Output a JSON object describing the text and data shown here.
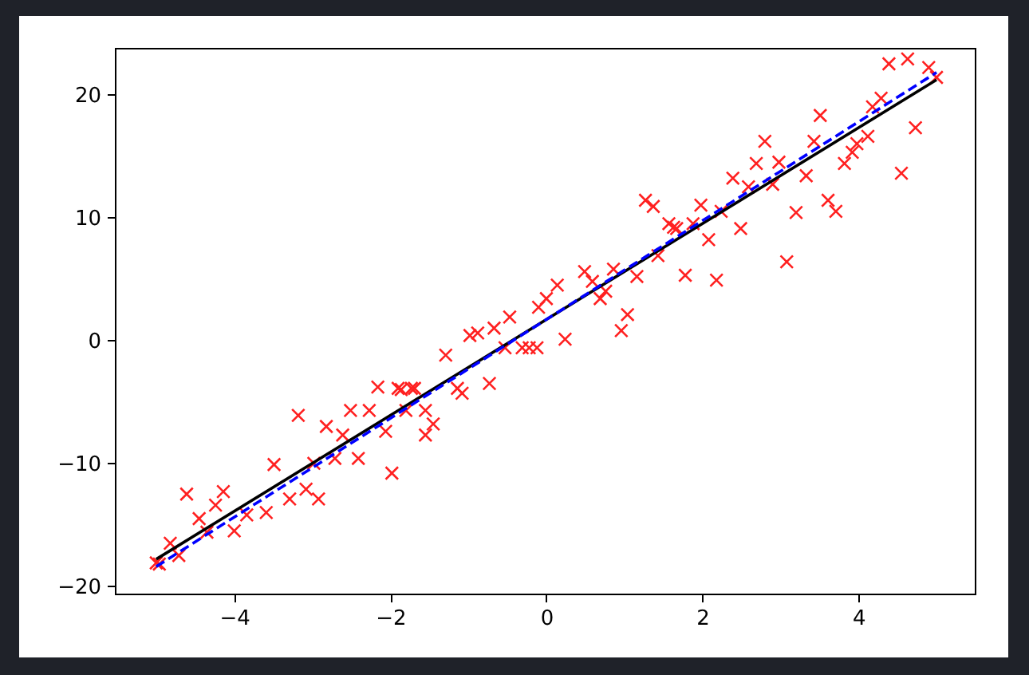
{
  "chart_data": {
    "type": "scatter",
    "xlim": [
      -5.53,
      5.49
    ],
    "ylim": [
      -20.6,
      23.8
    ],
    "xticks": [
      -4,
      -2,
      0,
      2,
      4
    ],
    "yticks": [
      -20,
      -10,
      0,
      10,
      20
    ],
    "grid": false,
    "series": [
      {
        "color": "#ff2020",
        "marker": "cross",
        "x": [
          -5.0,
          -4.96,
          -4.82,
          -4.71,
          -4.61,
          -4.45,
          -4.35,
          -4.24,
          -4.14,
          -4.0,
          -3.84,
          -3.59,
          -3.49,
          -3.29,
          -3.18,
          -3.08,
          -2.98,
          -2.92,
          -2.82,
          -2.71,
          -2.61,
          -2.51,
          -2.41,
          -2.27,
          -2.16,
          -2.06,
          -1.98,
          -1.9,
          -1.86,
          -1.8,
          -1.73,
          -1.69,
          -1.55,
          -1.55,
          -1.45,
          -1.29,
          -1.14,
          -1.08,
          -0.98,
          -0.88,
          -0.73,
          -0.67,
          -0.53,
          -0.47,
          -0.31,
          -0.22,
          -0.12,
          -0.1,
          0.0,
          0.14,
          0.24,
          0.49,
          0.59,
          0.69,
          0.76,
          0.86,
          0.96,
          1.04,
          1.16,
          1.27,
          1.37,
          1.43,
          1.57,
          1.63,
          1.67,
          1.78,
          1.88,
          1.98,
          2.08,
          2.18,
          2.24,
          2.39,
          2.49,
          2.59,
          2.69,
          2.8,
          2.9,
          2.98,
          3.08,
          3.2,
          3.33,
          3.43,
          3.51,
          3.61,
          3.71,
          3.82,
          3.92,
          3.98,
          4.12,
          4.18,
          4.29,
          4.39,
          4.55,
          4.63,
          4.73,
          4.9,
          5.0
        ],
        "values": [
          -18.1,
          -18.2,
          -16.5,
          -17.5,
          -12.5,
          -14.5,
          -15.6,
          -13.4,
          -12.3,
          -15.5,
          -14.2,
          -14.0,
          -10.1,
          -12.9,
          -6.1,
          -12.1,
          -10.0,
          -12.9,
          -7.0,
          -9.6,
          -7.7,
          -5.7,
          -9.6,
          -5.7,
          -3.8,
          -7.4,
          -10.8,
          -3.9,
          -4.0,
          -5.7,
          -3.9,
          -3.9,
          -7.7,
          -5.7,
          -6.8,
          -1.2,
          -3.9,
          -4.3,
          0.4,
          0.6,
          -3.5,
          1.0,
          -0.6,
          1.9,
          -0.6,
          -0.6,
          -0.6,
          2.7,
          3.4,
          4.5,
          0.1,
          5.6,
          4.8,
          3.4,
          4.0,
          5.8,
          0.8,
          2.1,
          5.2,
          11.4,
          10.9,
          6.9,
          9.5,
          9.2,
          9.1,
          5.3,
          9.5,
          11.0,
          8.2,
          4.9,
          10.5,
          13.2,
          9.1,
          12.5,
          14.4,
          16.2,
          12.7,
          14.5,
          6.4,
          10.4,
          13.4,
          16.2,
          18.3,
          11.4,
          10.5,
          14.4,
          15.3,
          16.0,
          16.6,
          19.0,
          19.7,
          22.5,
          13.6,
          22.9,
          17.3,
          22.2,
          21.4
        ]
      },
      {
        "type": "line",
        "color": "#000000",
        "line_style": "solid",
        "x": [
          -5,
          5
        ],
        "values": [
          -17.8,
          21.2
        ]
      },
      {
        "type": "line",
        "color": "#0000ff",
        "line_style": "dashed",
        "x": [
          -5,
          5
        ],
        "values": [
          -18.4,
          21.8
        ]
      }
    ]
  }
}
